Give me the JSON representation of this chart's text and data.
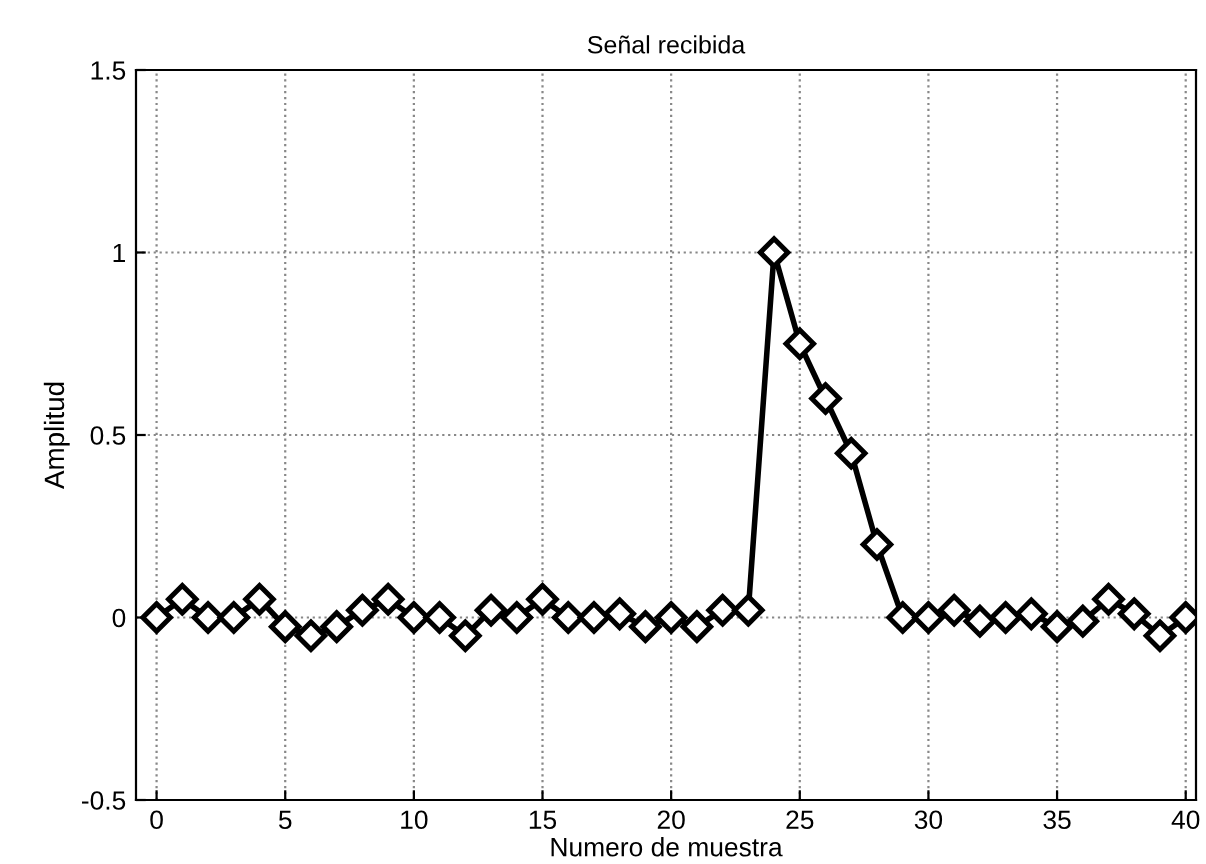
{
  "chart_data": {
    "type": "line",
    "title": "Señal recibida",
    "xlabel": "Numero de muestra",
    "ylabel": "Amplitud",
    "x": [
      0,
      1,
      2,
      3,
      4,
      5,
      6,
      7,
      8,
      9,
      10,
      11,
      12,
      13,
      14,
      15,
      16,
      17,
      18,
      19,
      20,
      21,
      22,
      23,
      24,
      25,
      26,
      27,
      28,
      29,
      30,
      31,
      32,
      33,
      34,
      35,
      36,
      37,
      38,
      39,
      40
    ],
    "series": [
      {
        "color": "#000000",
        "values": [
          0,
          0.05,
          0,
          0,
          0.05,
          -0.025,
          -0.05,
          -0.025,
          0.02,
          0.05,
          0,
          0,
          -0.05,
          0.02,
          0,
          0.05,
          0,
          0,
          0.01,
          -0.025,
          0,
          -0.025,
          0.02,
          0.02,
          1,
          0.75,
          0.6,
          0.45,
          0.2,
          0,
          0,
          0.02,
          -0.01,
          0,
          0.01,
          -0.025,
          -0.01,
          0.05,
          0.01,
          -0.05,
          0
        ]
      }
    ],
    "xlim": [
      -0.8,
      40.4
    ],
    "xticks": [
      0,
      5,
      10,
      15,
      20,
      25,
      30,
      35,
      40
    ],
    "ylim": [
      -0.5,
      1.5
    ],
    "yticks": [
      -0.5,
      0,
      0.5,
      1,
      1.5
    ],
    "grid": true,
    "marker": "diamond",
    "line_style": "solid"
  }
}
